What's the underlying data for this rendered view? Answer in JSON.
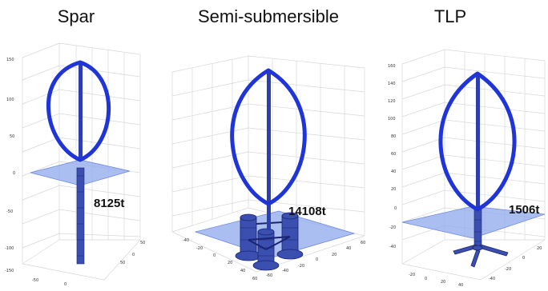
{
  "panels": [
    {
      "title": "Spar",
      "mass": "8125t",
      "z_ticks": [
        "150",
        "100",
        "50",
        "0",
        "-50",
        "-100",
        "-150"
      ],
      "x_ticks": [
        "-50",
        "0",
        "50"
      ],
      "y_ticks": [
        "0",
        "50"
      ]
    },
    {
      "title": "Semi-submersible",
      "mass": "14108t",
      "z_ticks": [],
      "x_ticks": [
        "-40",
        "-20",
        "0",
        "20",
        "40",
        "60"
      ],
      "y_ticks": [
        "-60",
        "-40",
        "-20",
        "0",
        "20",
        "40",
        "60"
      ]
    },
    {
      "title": "TLP",
      "mass": "1506t",
      "z_ticks": [
        "160",
        "140",
        "120",
        "100",
        "80",
        "60",
        "40",
        "20",
        "0",
        "-20",
        "-40"
      ],
      "x_ticks": [
        "-20",
        "0",
        "20",
        "40"
      ],
      "y_ticks": [
        "-40",
        "-20",
        "0",
        "20"
      ]
    }
  ],
  "colors": {
    "blade": "#1f35d8",
    "tower": "#2b3fb0",
    "tower_edge": "#1a2470",
    "water": "#8fa8ee",
    "grid": "#d7d7d7",
    "structure": "#3b4fb0"
  },
  "icons": [
    "darrieus-rotor",
    "water-plane",
    "floating-platform"
  ]
}
